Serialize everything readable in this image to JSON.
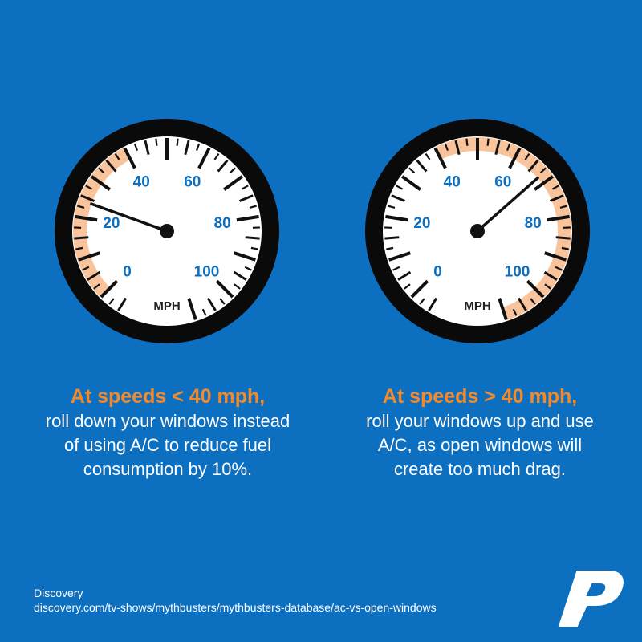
{
  "gauges": [
    {
      "id": "left",
      "unit": "MPH",
      "ticks": [
        "0",
        "20",
        "40",
        "60",
        "80",
        "100"
      ],
      "needle_mph": 24,
      "highlight_range": [
        0,
        40
      ],
      "colors": {
        "highlight": "#f9c39b",
        "face": "#ffffff",
        "bezel": "#0a0a0a",
        "tick_label": "#0d6fbf"
      }
    },
    {
      "id": "right",
      "unit": "MPH",
      "ticks": [
        "0",
        "20",
        "40",
        "60",
        "80",
        "100"
      ],
      "needle_mph": 68,
      "highlight_range": [
        40,
        110
      ],
      "colors": {
        "highlight": "#f9c39b",
        "face": "#ffffff",
        "bezel": "#0a0a0a",
        "tick_label": "#0d6fbf"
      }
    }
  ],
  "captions": {
    "left": {
      "headline": "At speeds < 40 mph,",
      "lines": [
        "roll down your windows instead",
        "of using A/C to reduce fuel",
        "consumption by 10%."
      ]
    },
    "right": {
      "headline": "At speeds > 40 mph,",
      "lines": [
        "roll your windows up and use",
        "A/C, as open windows will",
        "create too much drag."
      ]
    }
  },
  "source": {
    "name": "Discovery",
    "url": "discovery.com/tv-shows/mythbusters/mythbusters-database/ac-vs-open-windows"
  },
  "logo": {
    "letter": "P",
    "icon": "p-logo-icon"
  },
  "colors": {
    "background": "#0d6fbf",
    "headline": "#f5892a",
    "text": "#ffffff"
  }
}
